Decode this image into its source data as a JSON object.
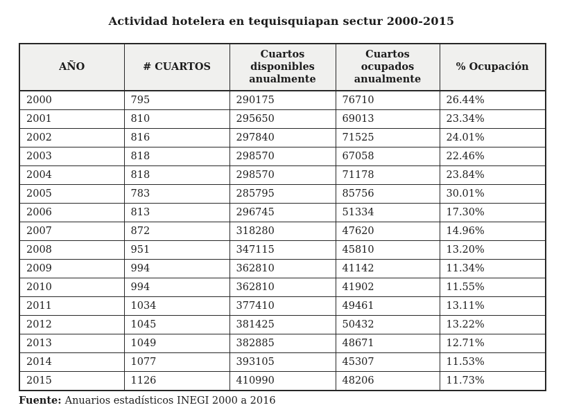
{
  "title": "Actividad hotelera en tequisquiapan sectur 2000-2015",
  "table": {
    "headers": [
      "AÑO",
      "# CUARTOS",
      "Cuartos\ndisponibles\nanualmente",
      "Cuartos\nocupados\nanualmente",
      "% Ocupación"
    ],
    "rows": [
      [
        "2000",
        "795",
        "290175",
        "76710",
        "26.44%"
      ],
      [
        "2001",
        "810",
        "295650",
        "69013",
        "23.34%"
      ],
      [
        "2002",
        "816",
        "297840",
        "71525",
        "24.01%"
      ],
      [
        "2003",
        "818",
        "298570",
        "67058",
        "22.46%"
      ],
      [
        "2004",
        "818",
        "298570",
        "71178",
        "23.84%"
      ],
      [
        "2005",
        "783",
        "285795",
        "85756",
        "30.01%"
      ],
      [
        "2006",
        "813",
        "296745",
        "51334",
        "17.30%"
      ],
      [
        "2007",
        "872",
        "318280",
        "47620",
        "14.96%"
      ],
      [
        "2008",
        "951",
        "347115",
        "45810",
        "13.20%"
      ],
      [
        "2009",
        "994",
        "362810",
        "41142",
        "11.34%"
      ],
      [
        "2010",
        "994",
        "362810",
        "41902",
        "11.55%"
      ],
      [
        "2011",
        "1034",
        "377410",
        "49461",
        "13.11%"
      ],
      [
        "2012",
        "1045",
        "381425",
        "50432",
        "13.22%"
      ],
      [
        "2013",
        "1049",
        "382885",
        "48671",
        "12.71%"
      ],
      [
        "2014",
        "1077",
        "393105",
        "45307",
        "11.53%"
      ],
      [
        "2015",
        "1126",
        "410990",
        "48206",
        "11.73%"
      ]
    ]
  },
  "footer": {
    "label": "Fuente:",
    "text": "Anuarios estadísticos INEGI 2000 a 2016"
  },
  "colors": {
    "header_bg": "#f0f0ee",
    "border": "#262626",
    "text": "#1c1c1c",
    "page_bg": "#ffffff"
  }
}
